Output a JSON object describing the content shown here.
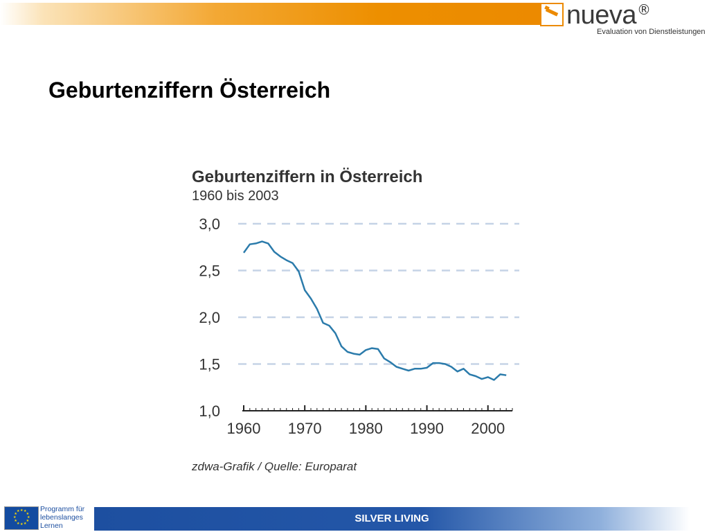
{
  "header": {
    "logo_name": "nueva",
    "logo_mark": "®",
    "logo_tagline": "Evaluation von Dienstleistungen"
  },
  "slide": {
    "title": "Geburtenziffern Österreich"
  },
  "footer": {
    "label": "SILVER LIVING",
    "program_lines": [
      "Programm für",
      "lebenslanges",
      "Lernen"
    ],
    "flag_icon": "eu-flag-icon"
  },
  "colors": {
    "accent_orange": "#ec8a00",
    "footer_blue": "#1d4fa0",
    "line_color": "#2b7bab",
    "grid_color": "#c5d3e6"
  },
  "chart_data": {
    "type": "line",
    "title": "Geburtenziffern in Österreich",
    "subtitle": "1960 bis 2003",
    "source": "zdwa-Grafik / Quelle: Europarat",
    "xlabel": "",
    "ylabel": "",
    "xlim": [
      1960,
      2004
    ],
    "ylim": [
      1.0,
      3.0
    ],
    "x_ticks": [
      "1960",
      "1970",
      "1980",
      "1990",
      "2000"
    ],
    "y_ticks": [
      "3,0",
      "2,5",
      "2,0",
      "1,5",
      "1,0"
    ],
    "grid": "horizontal dashed",
    "series": [
      {
        "x": [
          1960,
          1961,
          1962,
          1963,
          1964,
          1965,
          1966,
          1967,
          1968,
          1969,
          1970,
          1971,
          1972,
          1973,
          1974,
          1975,
          1976,
          1977,
          1978,
          1979,
          1980,
          1981,
          1982,
          1983,
          1984,
          1985,
          1986,
          1987,
          1988,
          1989,
          1990,
          1991,
          1992,
          1993,
          1994,
          1995,
          1996,
          1997,
          1998,
          1999,
          2000,
          2001,
          2002,
          2003
        ],
        "values": [
          2.69,
          2.78,
          2.79,
          2.81,
          2.79,
          2.7,
          2.65,
          2.61,
          2.58,
          2.49,
          2.29,
          2.2,
          2.09,
          1.94,
          1.91,
          1.83,
          1.69,
          1.63,
          1.61,
          1.6,
          1.65,
          1.67,
          1.66,
          1.56,
          1.52,
          1.47,
          1.45,
          1.43,
          1.45,
          1.45,
          1.46,
          1.51,
          1.51,
          1.5,
          1.47,
          1.42,
          1.45,
          1.39,
          1.37,
          1.34,
          1.36,
          1.33,
          1.39,
          1.38
        ]
      }
    ]
  }
}
